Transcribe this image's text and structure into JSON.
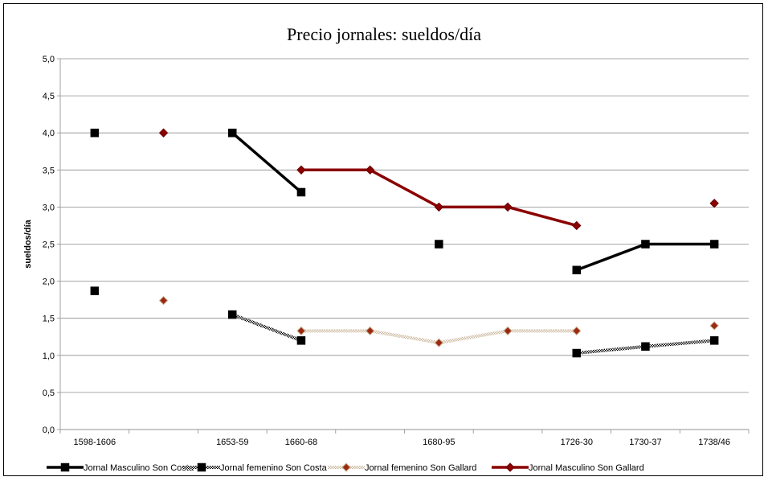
{
  "chart_data": {
    "type": "line",
    "title": "Precio jornales: sueldos/día",
    "xlabel": "",
    "ylabel": "sueldos/día",
    "ylim": [
      0,
      5
    ],
    "yticks": [
      "0,0",
      "0,5",
      "1,0",
      "1,5",
      "2,0",
      "2,5",
      "3,0",
      "3,5",
      "4,0",
      "4,5",
      "5,0"
    ],
    "categories": [
      "1598-1606",
      "",
      "1653-59",
      "1660-68",
      "",
      "1680-95",
      "",
      "1726-30",
      "1730-37",
      "1738/46"
    ],
    "grid": "horizontal",
    "legend_position": "bottom",
    "series": [
      {
        "name": "Jornal Masculino Son Costa",
        "color": "#000000",
        "line": "solid",
        "marker": "square",
        "values": [
          4.0,
          null,
          4.0,
          3.2,
          null,
          2.5,
          null,
          2.15,
          2.5,
          2.5
        ]
      },
      {
        "name": "Jornal femenino Son Costa",
        "color": "#000000",
        "line": "hatched",
        "marker": "square",
        "values": [
          1.87,
          null,
          1.55,
          1.2,
          null,
          null,
          null,
          1.03,
          1.12,
          1.2
        ]
      },
      {
        "name": "Jornal femenino Son Gallard",
        "color": "#c9b49a",
        "line": "hatched",
        "marker": "diamond",
        "values": [
          null,
          1.74,
          null,
          1.33,
          1.33,
          1.17,
          1.33,
          1.33,
          null,
          1.4
        ]
      },
      {
        "name": "Jornal Masculino Son Gallard",
        "color": "#8b0000",
        "line": "solid",
        "marker": "diamond",
        "values": [
          null,
          4.0,
          null,
          3.5,
          3.5,
          3.0,
          3.0,
          2.75,
          null,
          3.05
        ]
      }
    ]
  }
}
